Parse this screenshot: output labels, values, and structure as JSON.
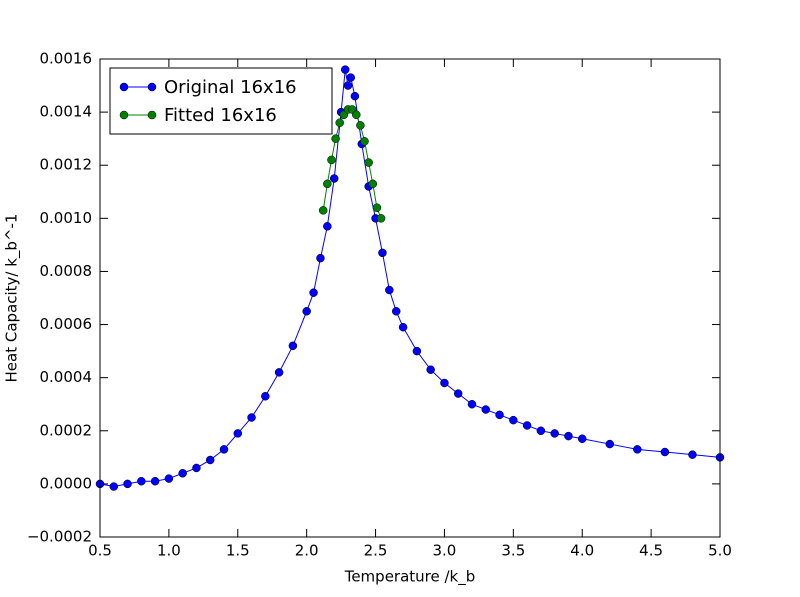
{
  "chart_data": {
    "type": "line",
    "xlabel": "Temperature /k_b",
    "ylabel": "Heat Capacity/ k_b^-1",
    "xlim": [
      0.5,
      5.0
    ],
    "ylim": [
      -0.0002,
      0.0016
    ],
    "xticks": [
      0.5,
      {
        "value": 1,
        "label": "1.0"
      },
      1.5,
      {
        "value": 2,
        "label": "2.0"
      },
      2.5,
      {
        "value": 3,
        "label": "3.0"
      },
      3.5,
      {
        "value": 4,
        "label": "4.0"
      },
      4.5,
      {
        "value": 5,
        "label": "5.0"
      }
    ],
    "yticks": [
      {
        "value": -0.0002,
        "label": "−0.0002"
      },
      {
        "value": 0,
        "label": "0.0000"
      },
      {
        "value": 0.0002,
        "label": "0.0002"
      },
      {
        "value": 0.0004,
        "label": "0.0004"
      },
      {
        "value": 0.0006,
        "label": "0.0006"
      },
      {
        "value": 0.0008,
        "label": "0.0008"
      },
      {
        "value": 0.001,
        "label": "0.0010"
      },
      {
        "value": 0.0012,
        "label": "0.0012"
      },
      {
        "value": 0.0014,
        "label": "0.0014"
      },
      {
        "value": 0.0016,
        "label": "0.0016"
      }
    ],
    "grid": false,
    "legend": "upper left",
    "series": [
      {
        "name": "Original 16x16",
        "color": "#0000ff",
        "x": [
          0.5,
          0.6,
          0.7,
          0.8,
          0.9,
          1.0,
          1.1,
          1.2,
          1.3,
          1.4,
          1.5,
          1.6,
          1.7,
          1.8,
          1.9,
          2.0,
          2.05,
          2.1,
          2.15,
          2.2,
          2.25,
          2.28,
          2.3,
          2.32,
          2.35,
          2.4,
          2.45,
          2.5,
          2.55,
          2.6,
          2.65,
          2.7,
          2.8,
          2.9,
          3.0,
          3.1,
          3.2,
          3.3,
          3.4,
          3.5,
          3.6,
          3.7,
          3.8,
          3.9,
          4.0,
          4.2,
          4.4,
          4.6,
          4.8,
          5.0
        ],
        "values": [
          0.0,
          -1e-05,
          0.0,
          1e-05,
          1e-05,
          2e-05,
          4e-05,
          6e-05,
          9e-05,
          0.00013,
          0.00019,
          0.00025,
          0.00033,
          0.00042,
          0.00052,
          0.00065,
          0.00072,
          0.00085,
          0.00097,
          0.00115,
          0.0014,
          0.00156,
          0.0015,
          0.00153,
          0.00146,
          0.00128,
          0.00112,
          0.001,
          0.00087,
          0.00073,
          0.00065,
          0.00059,
          0.0005,
          0.00043,
          0.00038,
          0.00034,
          0.0003,
          0.00028,
          0.00026,
          0.00024,
          0.00022,
          0.0002,
          0.00019,
          0.00018,
          0.00017,
          0.00015,
          0.00013,
          0.00012,
          0.00011,
          0.0001
        ]
      },
      {
        "name": "Fitted 16x16",
        "color": "#008000",
        "x": [
          2.12,
          2.15,
          2.18,
          2.21,
          2.24,
          2.27,
          2.3,
          2.33,
          2.36,
          2.39,
          2.42,
          2.45,
          2.48,
          2.51,
          2.54
        ],
        "values": [
          0.00103,
          0.00113,
          0.00122,
          0.0013,
          0.00136,
          0.00139,
          0.00141,
          0.00141,
          0.00139,
          0.00135,
          0.00129,
          0.00121,
          0.00113,
          0.00104,
          0.001
        ]
      }
    ]
  }
}
